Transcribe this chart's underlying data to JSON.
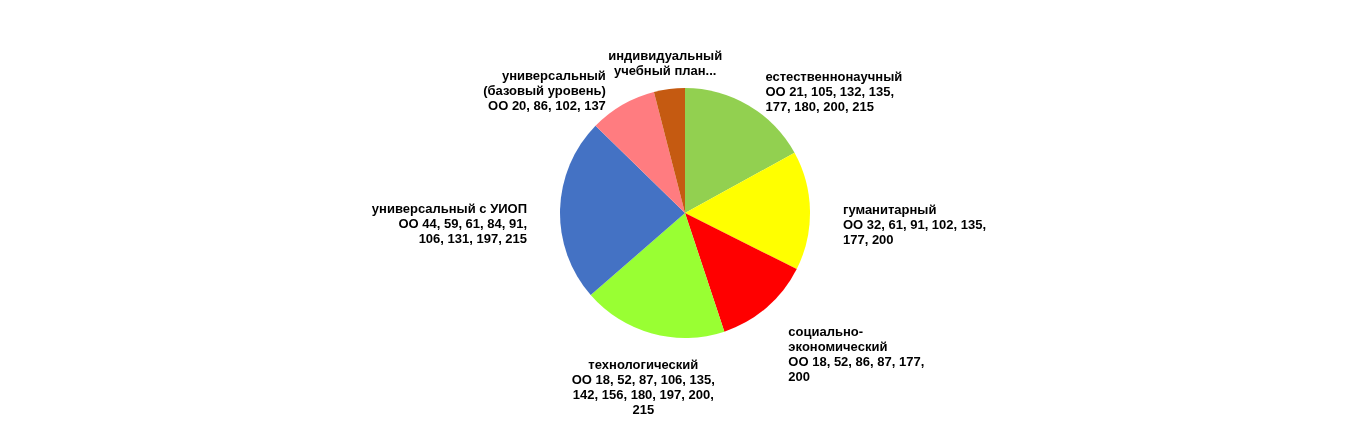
{
  "chart_data": {
    "type": "pie",
    "categories": [
      "естественнонаучный\nОО 21, 105, 132, 135,\n177, 180, 200, 215",
      "гуманитарный\nОО 32, 61, 91, 102, 135,\n177, 200",
      "социально-\nэкономический\nОО 18, 52, 86, 87, 177,\n200",
      "технологический\nОО 18, 52, 87, 106, 135,\n142, 156, 180, 197, 200,\n215",
      "универсальный с УИОП\nОО 44, 59, 61, 84, 91,\n106, 131, 197, 215",
      "универсальный\n(базовый уровень)\nОО 20, 86, 102, 137",
      "индивидуальный\nучебный план..."
    ],
    "values": [
      17,
      15.4,
      12.5,
      18.7,
      23.7,
      8.7,
      4.0
    ],
    "colors": [
      "#92d050",
      "#ffff00",
      "#ff0000",
      "#99ff33",
      "#4472c4",
      "#ff7c80",
      "#c55a11"
    ]
  }
}
